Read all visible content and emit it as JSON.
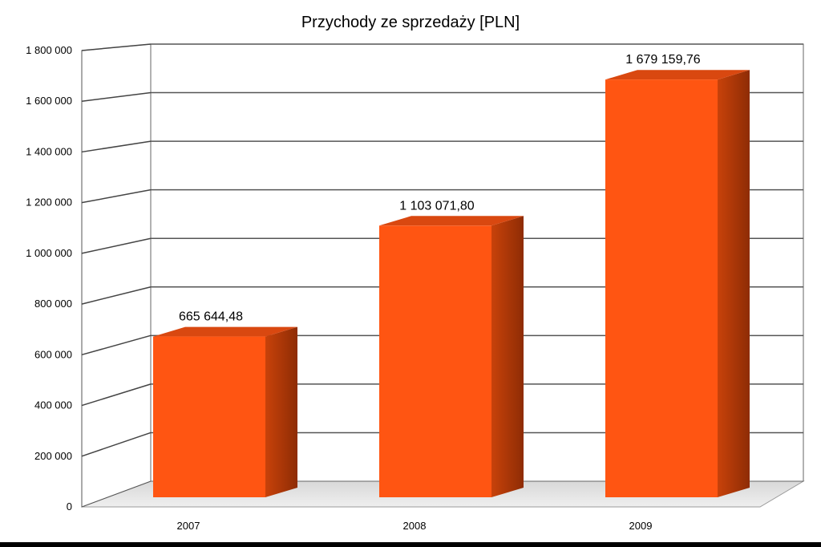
{
  "chart_data": {
    "type": "bar",
    "title": "Przychody ze sprzedaży [PLN]",
    "categories": [
      "2007",
      "2008",
      "2009"
    ],
    "values": [
      665644.48,
      1103071.8,
      1679159.76
    ],
    "data_labels": [
      "665 644,48",
      "1 103 071,80",
      "1 679 159,76"
    ],
    "y_ticks": [
      0,
      200000,
      400000,
      600000,
      800000,
      1000000,
      1200000,
      1400000,
      1600000,
      1800000
    ],
    "y_tick_labels": [
      "0",
      "200 000",
      "400 000",
      "600 000",
      "800 000",
      "1 000 000",
      "1 200 000",
      "1 400 000",
      "1 600 000",
      "1 800 000"
    ],
    "ylim": [
      0,
      1800000
    ],
    "xlabel": "",
    "ylabel": "",
    "grid": true,
    "style": "3d",
    "bar_color": "#FF5512",
    "bar_side_color": "#B83A08",
    "bar_top_color": "#D94810"
  }
}
